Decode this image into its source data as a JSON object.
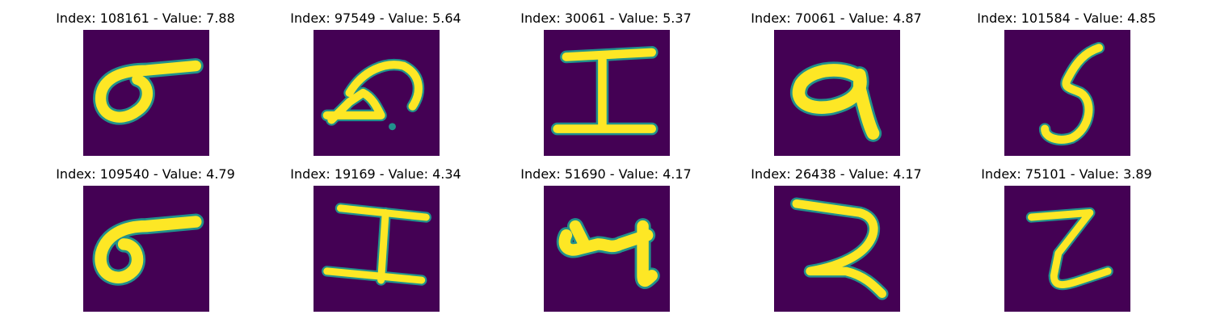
{
  "figure": {
    "background_color": "#440154",
    "stroke_color": "#fde725",
    "edge_color": "#21918c",
    "panels": [
      {
        "title": "Index: 108161 - Value: 7.88",
        "glyph": "6-rotated-loop"
      },
      {
        "title": "Index: 97549 - Value: 5.64",
        "glyph": "hook-arc"
      },
      {
        "title": "Index: 30061 - Value: 5.37",
        "glyph": "I-beam"
      },
      {
        "title": "Index: 70061 - Value: 4.87",
        "glyph": "9-thick"
      },
      {
        "title": "Index: 101584 - Value: 4.85",
        "glyph": "5"
      },
      {
        "title": "Index: 109540 - Value: 4.79",
        "glyph": "6-rotated-loop"
      },
      {
        "title": "Index: 19169 - Value: 4.34",
        "glyph": "I-beam"
      },
      {
        "title": "Index: 51690 - Value: 4.17",
        "glyph": "4-blob"
      },
      {
        "title": "Index: 26438 - Value: 4.17",
        "glyph": "2"
      },
      {
        "title": "Index: 75101 - Value: 3.89",
        "glyph": "Z"
      }
    ]
  }
}
